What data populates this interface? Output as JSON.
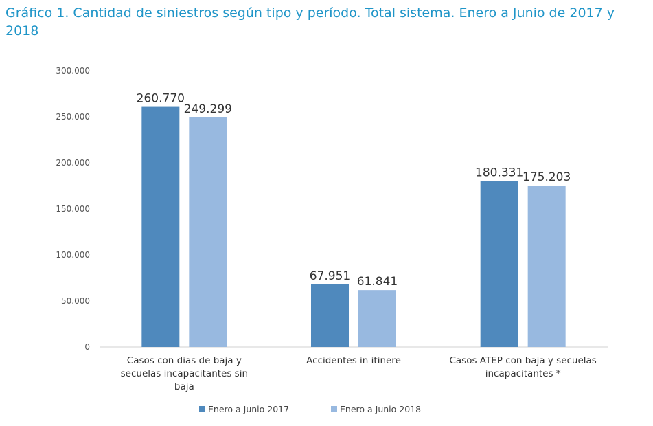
{
  "chart_data": {
    "type": "bar",
    "title": "Gráfico 1. Cantidad de siniestros según tipo y período. Total sistema. Enero a Junio de 2017 y 2018",
    "categories": [
      "Casos con dias de baja y secuelas incapacitantes sin baja",
      "Accidentes in itinere",
      "Casos ATEP con baja y secuelas incapacitantes *"
    ],
    "category_lines": [
      [
        "Casos con dias de baja y",
        "secuelas incapacitantes sin",
        "baja"
      ],
      [
        "Accidentes in itinere"
      ],
      [
        "Casos ATEP con baja y secuelas",
        "incapacitantes *"
      ]
    ],
    "series": [
      {
        "name": "Enero a Junio 2017",
        "values": [
          260770,
          67951,
          180331
        ],
        "labels": [
          "260.770",
          "67.951",
          "180.331"
        ],
        "color": "#4f89bd"
      },
      {
        "name": "Enero a Junio 2018",
        "values": [
          249299,
          61841,
          175203
        ],
        "labels": [
          "249.299",
          "61.841",
          "175.203"
        ],
        "color": "#98b9e0"
      }
    ],
    "ylim": [
      0,
      300000
    ],
    "yticks": [
      0,
      50000,
      100000,
      150000,
      200000,
      250000,
      300000
    ],
    "ytick_labels": [
      "0",
      "50.000",
      "100.000",
      "150.000",
      "200.000",
      "250.000",
      "300.000"
    ],
    "xlabel": "",
    "ylabel": "",
    "grid": false,
    "legend_position": "bottom"
  }
}
